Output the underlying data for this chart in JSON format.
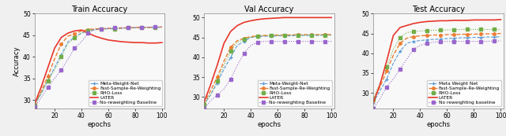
{
  "epochs": [
    5,
    10,
    15,
    20,
    25,
    30,
    35,
    40,
    45,
    50,
    55,
    60,
    65,
    70,
    75,
    80,
    85,
    90,
    95,
    100
  ],
  "train": {
    "title": "Train Accuracy",
    "ylabel": "Accuracy",
    "xlabel": "epochs",
    "ylim": [
      28,
      50
    ],
    "yticks": [
      30,
      35,
      40,
      45,
      50
    ],
    "meta_weight_net": [
      29.0,
      31.5,
      34.5,
      37.5,
      40.5,
      43.5,
      44.5,
      45.5,
      46.0,
      46.3,
      46.4,
      46.5,
      46.5,
      46.6,
      46.7,
      46.7,
      46.8,
      46.8,
      46.8,
      46.9
    ],
    "fast_sample_reweight": [
      29.2,
      32.0,
      35.5,
      39.5,
      43.0,
      44.8,
      45.3,
      46.0,
      46.3,
      46.5,
      46.5,
      46.6,
      46.6,
      46.7,
      46.7,
      46.8,
      46.8,
      46.8,
      46.9,
      46.9
    ],
    "rho_loss": [
      28.8,
      31.5,
      34.5,
      37.0,
      40.0,
      43.0,
      44.5,
      45.5,
      46.0,
      46.3,
      46.4,
      46.5,
      46.5,
      46.6,
      46.7,
      46.7,
      46.8,
      46.8,
      46.8,
      46.8
    ],
    "later": [
      29.0,
      33.0,
      37.5,
      42.0,
      44.5,
      45.5,
      46.0,
      46.2,
      45.5,
      44.8,
      44.3,
      43.9,
      43.7,
      43.5,
      43.4,
      43.3,
      43.3,
      43.2,
      43.2,
      43.3
    ],
    "no_reweighting": [
      28.5,
      30.5,
      33.0,
      35.0,
      37.0,
      39.5,
      42.0,
      43.5,
      45.5,
      46.3,
      46.5,
      46.6,
      46.7,
      46.7,
      46.8,
      46.8,
      46.8,
      46.9,
      46.9,
      46.9
    ]
  },
  "val": {
    "title": "Val Accuracy",
    "ylabel": "",
    "xlabel": "epochs",
    "ylim": [
      27,
      51
    ],
    "yticks": [
      30,
      35,
      40,
      45,
      50
    ],
    "meta_weight_net": [
      28.0,
      30.5,
      33.5,
      37.0,
      40.0,
      43.0,
      44.0,
      45.0,
      45.2,
      45.3,
      45.3,
      45.4,
      45.4,
      45.4,
      45.5,
      45.5,
      45.5,
      45.5,
      45.6,
      45.6
    ],
    "fast_sample_reweight": [
      28.2,
      31.5,
      35.0,
      39.0,
      42.5,
      44.2,
      44.8,
      45.2,
      45.4,
      45.5,
      45.5,
      45.6,
      45.6,
      45.6,
      45.7,
      45.7,
      45.7,
      45.7,
      45.7,
      45.7
    ],
    "rho_loss": [
      28.0,
      30.5,
      34.0,
      38.0,
      41.5,
      43.8,
      44.5,
      45.0,
      45.3,
      45.4,
      45.5,
      45.5,
      45.5,
      45.6,
      45.6,
      45.6,
      45.6,
      45.6,
      45.6,
      45.6
    ],
    "later": [
      28.5,
      33.0,
      38.0,
      43.5,
      46.5,
      48.0,
      48.8,
      49.2,
      49.5,
      49.7,
      49.8,
      49.9,
      50.0,
      50.0,
      50.0,
      50.0,
      50.0,
      50.0,
      50.0,
      50.0
    ],
    "no_reweighting": [
      27.0,
      29.0,
      30.5,
      32.0,
      34.5,
      38.0,
      41.0,
      43.0,
      43.8,
      44.0,
      44.0,
      44.0,
      44.0,
      44.0,
      44.0,
      44.0,
      44.0,
      44.0,
      44.0,
      44.0
    ]
  },
  "test": {
    "title": "Test Accuracy",
    "ylabel": "",
    "xlabel": "epochs",
    "ylim": [
      26,
      50
    ],
    "yticks": [
      30,
      35,
      40,
      45,
      50
    ],
    "meta_weight_net": [
      27.5,
      30.5,
      33.5,
      37.5,
      40.5,
      42.5,
      43.0,
      43.2,
      43.4,
      43.5,
      43.6,
      43.7,
      43.8,
      43.9,
      43.9,
      44.0,
      44.0,
      44.1,
      44.1,
      44.2
    ],
    "fast_sample_reweight": [
      28.0,
      31.5,
      35.5,
      39.5,
      42.5,
      43.8,
      44.2,
      44.4,
      44.5,
      44.6,
      44.6,
      44.7,
      44.7,
      44.8,
      44.8,
      44.8,
      44.9,
      44.9,
      44.9,
      45.0
    ],
    "rho_loss": [
      28.5,
      32.5,
      36.5,
      41.0,
      44.0,
      45.2,
      45.5,
      45.6,
      45.7,
      45.8,
      45.8,
      45.9,
      45.9,
      46.0,
      46.0,
      46.0,
      46.0,
      46.0,
      46.0,
      46.0
    ],
    "later": [
      27.5,
      32.0,
      38.0,
      44.5,
      46.5,
      47.0,
      47.5,
      47.8,
      48.0,
      48.1,
      48.2,
      48.2,
      48.3,
      48.3,
      48.3,
      48.4,
      48.4,
      48.4,
      48.4,
      48.5
    ],
    "no_reweighting": [
      26.0,
      28.5,
      31.5,
      33.5,
      36.0,
      38.5,
      41.0,
      42.0,
      42.5,
      42.8,
      42.9,
      43.0,
      43.0,
      43.0,
      43.0,
      43.0,
      43.0,
      43.0,
      43.1,
      43.1
    ]
  },
  "colors": {
    "meta_weight_net": "#5b9bd5",
    "fast_sample_reweight": "#ed7d31",
    "rho_loss": "#70ad47",
    "later": "#e8362a",
    "no_reweighting": "#9966cc"
  },
  "markers": {
    "meta_weight_net": "+",
    "fast_sample_reweight": "o",
    "rho_loss": "s",
    "later": "None",
    "no_reweighting": "s"
  },
  "markersizes": {
    "meta_weight_net": 3.5,
    "fast_sample_reweight": 2.5,
    "rho_loss": 2.5,
    "later": 0,
    "no_reweighting": 2.5
  },
  "linestyles": {
    "meta_weight_net": "--",
    "fast_sample_reweight": "--",
    "rho_loss": ":",
    "later": "-",
    "no_reweighting": ":"
  },
  "linewidths": {
    "meta_weight_net": 0.8,
    "fast_sample_reweight": 1.0,
    "rho_loss": 0.8,
    "later": 1.2,
    "no_reweighting": 0.8
  },
  "legend_train": [
    "Meta-Weight-Net",
    "Fast-Sample-Re-Weighting",
    "RHO-Loss",
    "LATER",
    "No-reweighting Baseline"
  ],
  "legend_val": [
    "Meta-Weight-Net",
    "Fast-Sample-Re-Weighting",
    "RHO-Loss",
    "LATER",
    "No-reweighting Baseline"
  ],
  "legend_test": [
    "Meta Weight Net",
    "Fast-Sample-Re-Weighting",
    "RHO-Loss",
    "LATER",
    "No reweighting baseline"
  ],
  "xticks": [
    20,
    40,
    60,
    80,
    100
  ],
  "xlim": [
    5,
    102
  ],
  "figsize": [
    6.4,
    1.73
  ],
  "dpi": 100
}
